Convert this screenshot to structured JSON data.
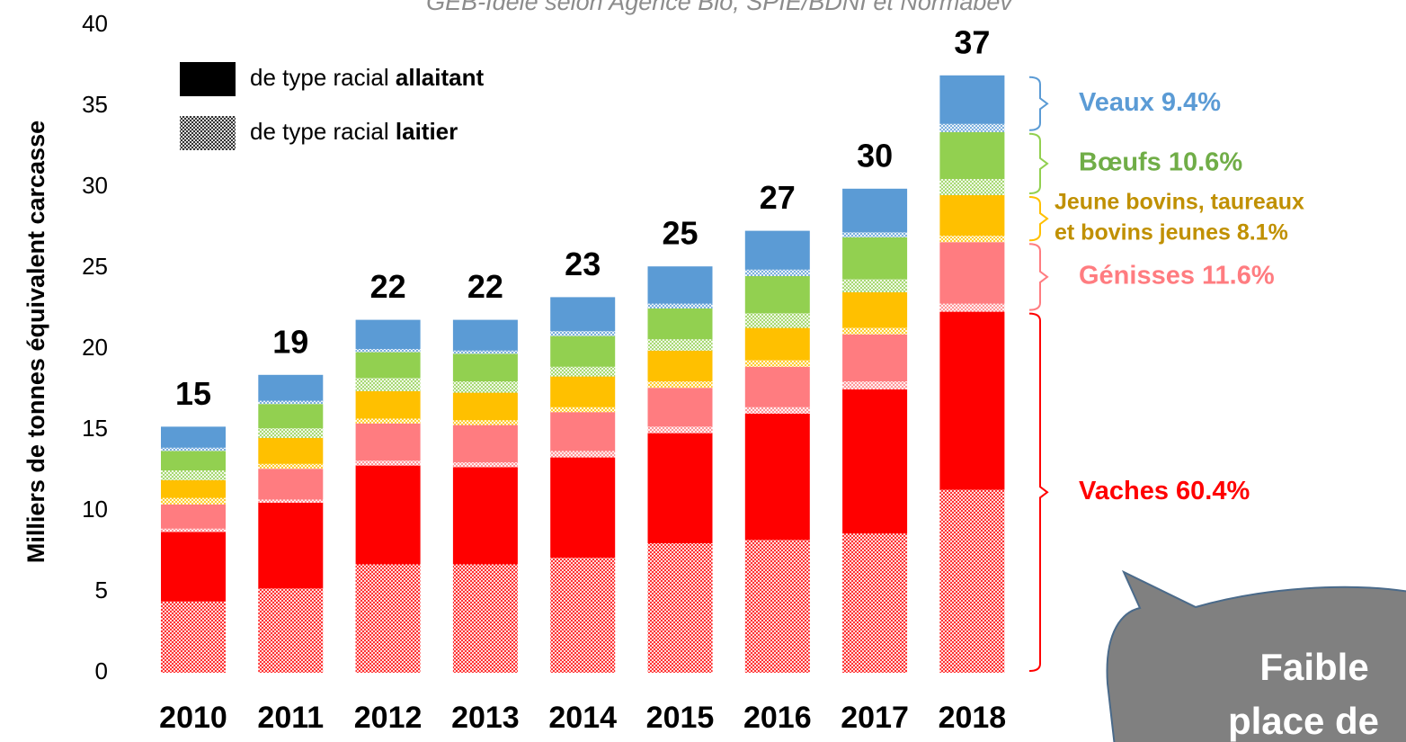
{
  "chart_data": {
    "type": "bar",
    "source": "GEB-Idele selon Agence Bio, SPIE/BDNI et Normabev",
    "y_label": "Milliers de tonnes équivalent carcasse",
    "categories": [
      "2010",
      "2011",
      "2012",
      "2013",
      "2014",
      "2015",
      "2016",
      "2017",
      "2018"
    ],
    "totals": [
      15,
      19,
      22,
      22,
      23,
      25,
      27,
      30,
      37
    ],
    "ylim": [
      0,
      40
    ],
    "yticks": [
      0,
      5,
      10,
      15,
      20,
      25,
      30,
      35,
      40
    ],
    "legend": [
      {
        "prefix": "de type racial",
        "emph": "allaitant",
        "color": "#000000",
        "pattern": false
      },
      {
        "prefix": "de type racial",
        "emph": "laitier",
        "color": "#000000",
        "pattern": true
      }
    ],
    "groups": [
      {
        "lines": [
          "Vaches 60.4%"
        ],
        "color": "#ff0000",
        "label_color": "#ff0000",
        "laitier": [
          4.4,
          5.2,
          6.7,
          6.7,
          7.1,
          8.0,
          8.2,
          8.6,
          11.3
        ],
        "allaitant": [
          4.3,
          5.3,
          6.1,
          6.0,
          6.2,
          6.8,
          7.8,
          8.9,
          11.0
        ]
      },
      {
        "lines": [
          "Génisses 11.6%"
        ],
        "color": "#ff7c80",
        "label_color": "#ff7c80",
        "laitier": [
          0.2,
          0.2,
          0.3,
          0.3,
          0.4,
          0.4,
          0.4,
          0.5,
          0.5
        ],
        "allaitant": [
          1.5,
          1.9,
          2.3,
          2.3,
          2.4,
          2.4,
          2.5,
          2.9,
          3.8
        ]
      },
      {
        "lines": [
          "Jeune bovins, taureaux",
          "et bovins jeunes 8.1%"
        ],
        "color": "#ffc000",
        "label_color": "#c09000",
        "laitier": [
          0.4,
          0.3,
          0.3,
          0.3,
          0.3,
          0.4,
          0.4,
          0.4,
          0.4
        ],
        "allaitant": [
          1.1,
          1.6,
          1.7,
          1.7,
          1.9,
          1.9,
          2.0,
          2.2,
          2.5
        ]
      },
      {
        "lines": [
          "Bœufs 10.6%"
        ],
        "color": "#92d050",
        "label_color": "#70ad47",
        "laitier": [
          0.6,
          0.6,
          0.8,
          0.7,
          0.6,
          0.7,
          0.9,
          0.8,
          1.0
        ],
        "allaitant": [
          1.2,
          1.5,
          1.6,
          1.7,
          1.9,
          1.9,
          2.3,
          2.6,
          2.9
        ]
      },
      {
        "lines": [
          "Veaux 9.4%"
        ],
        "color": "#5b9bd5",
        "label_color": "#5b9bd5",
        "laitier": [
          0.2,
          0.2,
          0.2,
          0.2,
          0.3,
          0.3,
          0.4,
          0.3,
          0.5
        ],
        "allaitant": [
          1.3,
          1.6,
          1.8,
          1.9,
          2.1,
          2.3,
          2.4,
          2.7,
          3.0
        ]
      }
    ]
  },
  "callout": {
    "lines": [
      "Faible",
      "place de"
    ]
  }
}
